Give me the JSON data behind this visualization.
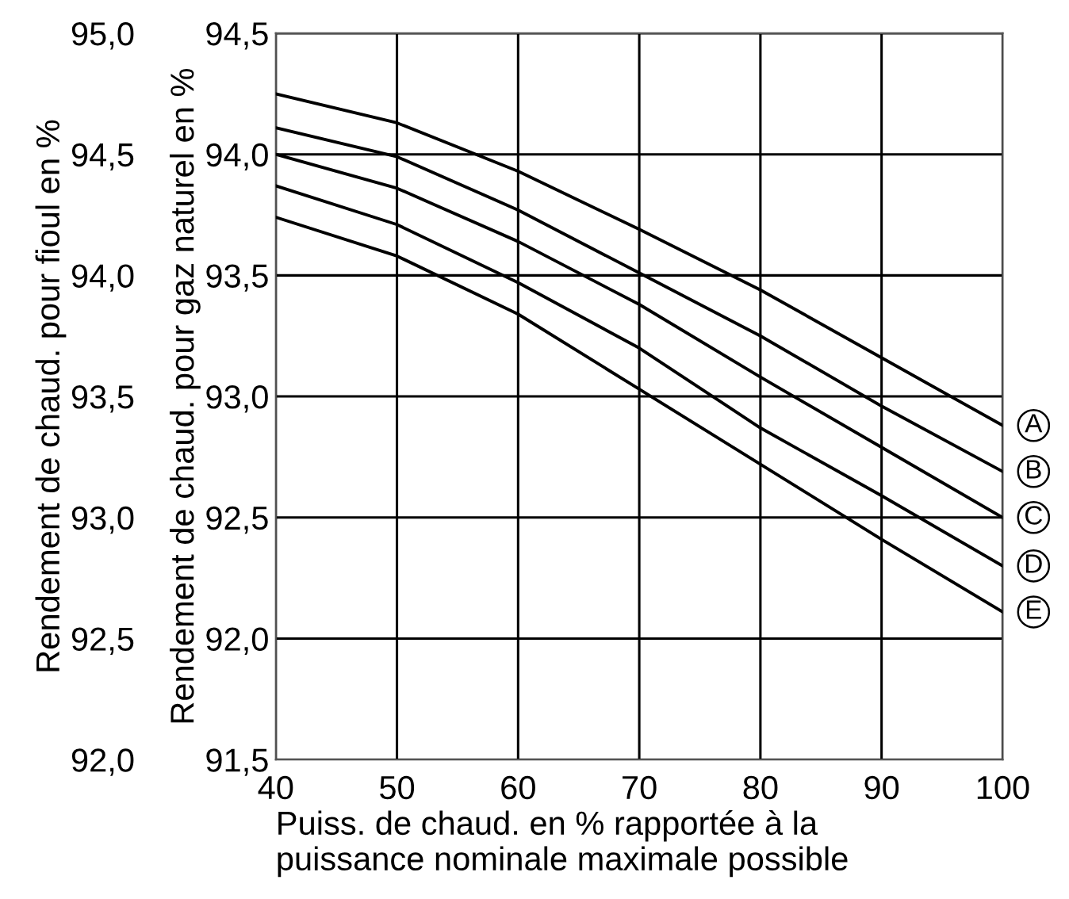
{
  "chart_data": {
    "type": "line",
    "xlabel": "Puiss. de chaud. en % rapportée à la\npuissance nominale maximale possible",
    "ylabel": "Rendement de chaud. pour gaz naturel en %",
    "y2label": "Rendement de chaud. pour fioul en %",
    "x": [
      40,
      50,
      60,
      70,
      80,
      90,
      100
    ],
    "series": [
      {
        "name": "A",
        "color": "#000000",
        "values": [
          94.25,
          94.13,
          93.93,
          93.69,
          93.44,
          93.16,
          92.88
        ]
      },
      {
        "name": "B",
        "color": "#000000",
        "values": [
          94.11,
          93.99,
          93.77,
          93.51,
          93.25,
          92.96,
          92.69
        ]
      },
      {
        "name": "C",
        "color": "#000000",
        "values": [
          94.0,
          93.86,
          93.64,
          93.38,
          93.08,
          92.79,
          92.5
        ]
      },
      {
        "name": "D",
        "color": "#000000",
        "values": [
          93.87,
          93.71,
          93.47,
          93.2,
          92.87,
          92.59,
          92.3
        ]
      },
      {
        "name": "E",
        "color": "#000000",
        "values": [
          93.74,
          93.58,
          93.34,
          93.03,
          92.72,
          92.41,
          92.11
        ]
      }
    ],
    "xlim": [
      40,
      100
    ],
    "xticks": [
      40,
      50,
      60,
      70,
      80,
      90,
      100
    ],
    "ylim": [
      91.5,
      94.5
    ],
    "yticks": [
      {
        "value": 91.5,
        "label": "91,5"
      },
      {
        "value": 92.0,
        "label": "92,0"
      },
      {
        "value": 92.5,
        "label": "92,5"
      },
      {
        "value": 93.0,
        "label": "93,0"
      },
      {
        "value": 93.5,
        "label": "93,5"
      },
      {
        "value": 94.0,
        "label": "94,0"
      },
      {
        "value": 94.5,
        "label": "94,5"
      }
    ],
    "y2lim": [
      92.0,
      95.0
    ],
    "y2ticks": [
      {
        "value": 92.0,
        "label": "92,0"
      },
      {
        "value": 92.5,
        "label": "92,5"
      },
      {
        "value": 93.0,
        "label": "93,0"
      },
      {
        "value": 93.5,
        "label": "93,5"
      },
      {
        "value": 94.0,
        "label": "94,0"
      },
      {
        "value": 94.5,
        "label": "94,5"
      },
      {
        "value": 95.0,
        "label": "95,0"
      }
    ],
    "grid": true,
    "marker": "none",
    "line_style": "solid",
    "legend": "right"
  }
}
